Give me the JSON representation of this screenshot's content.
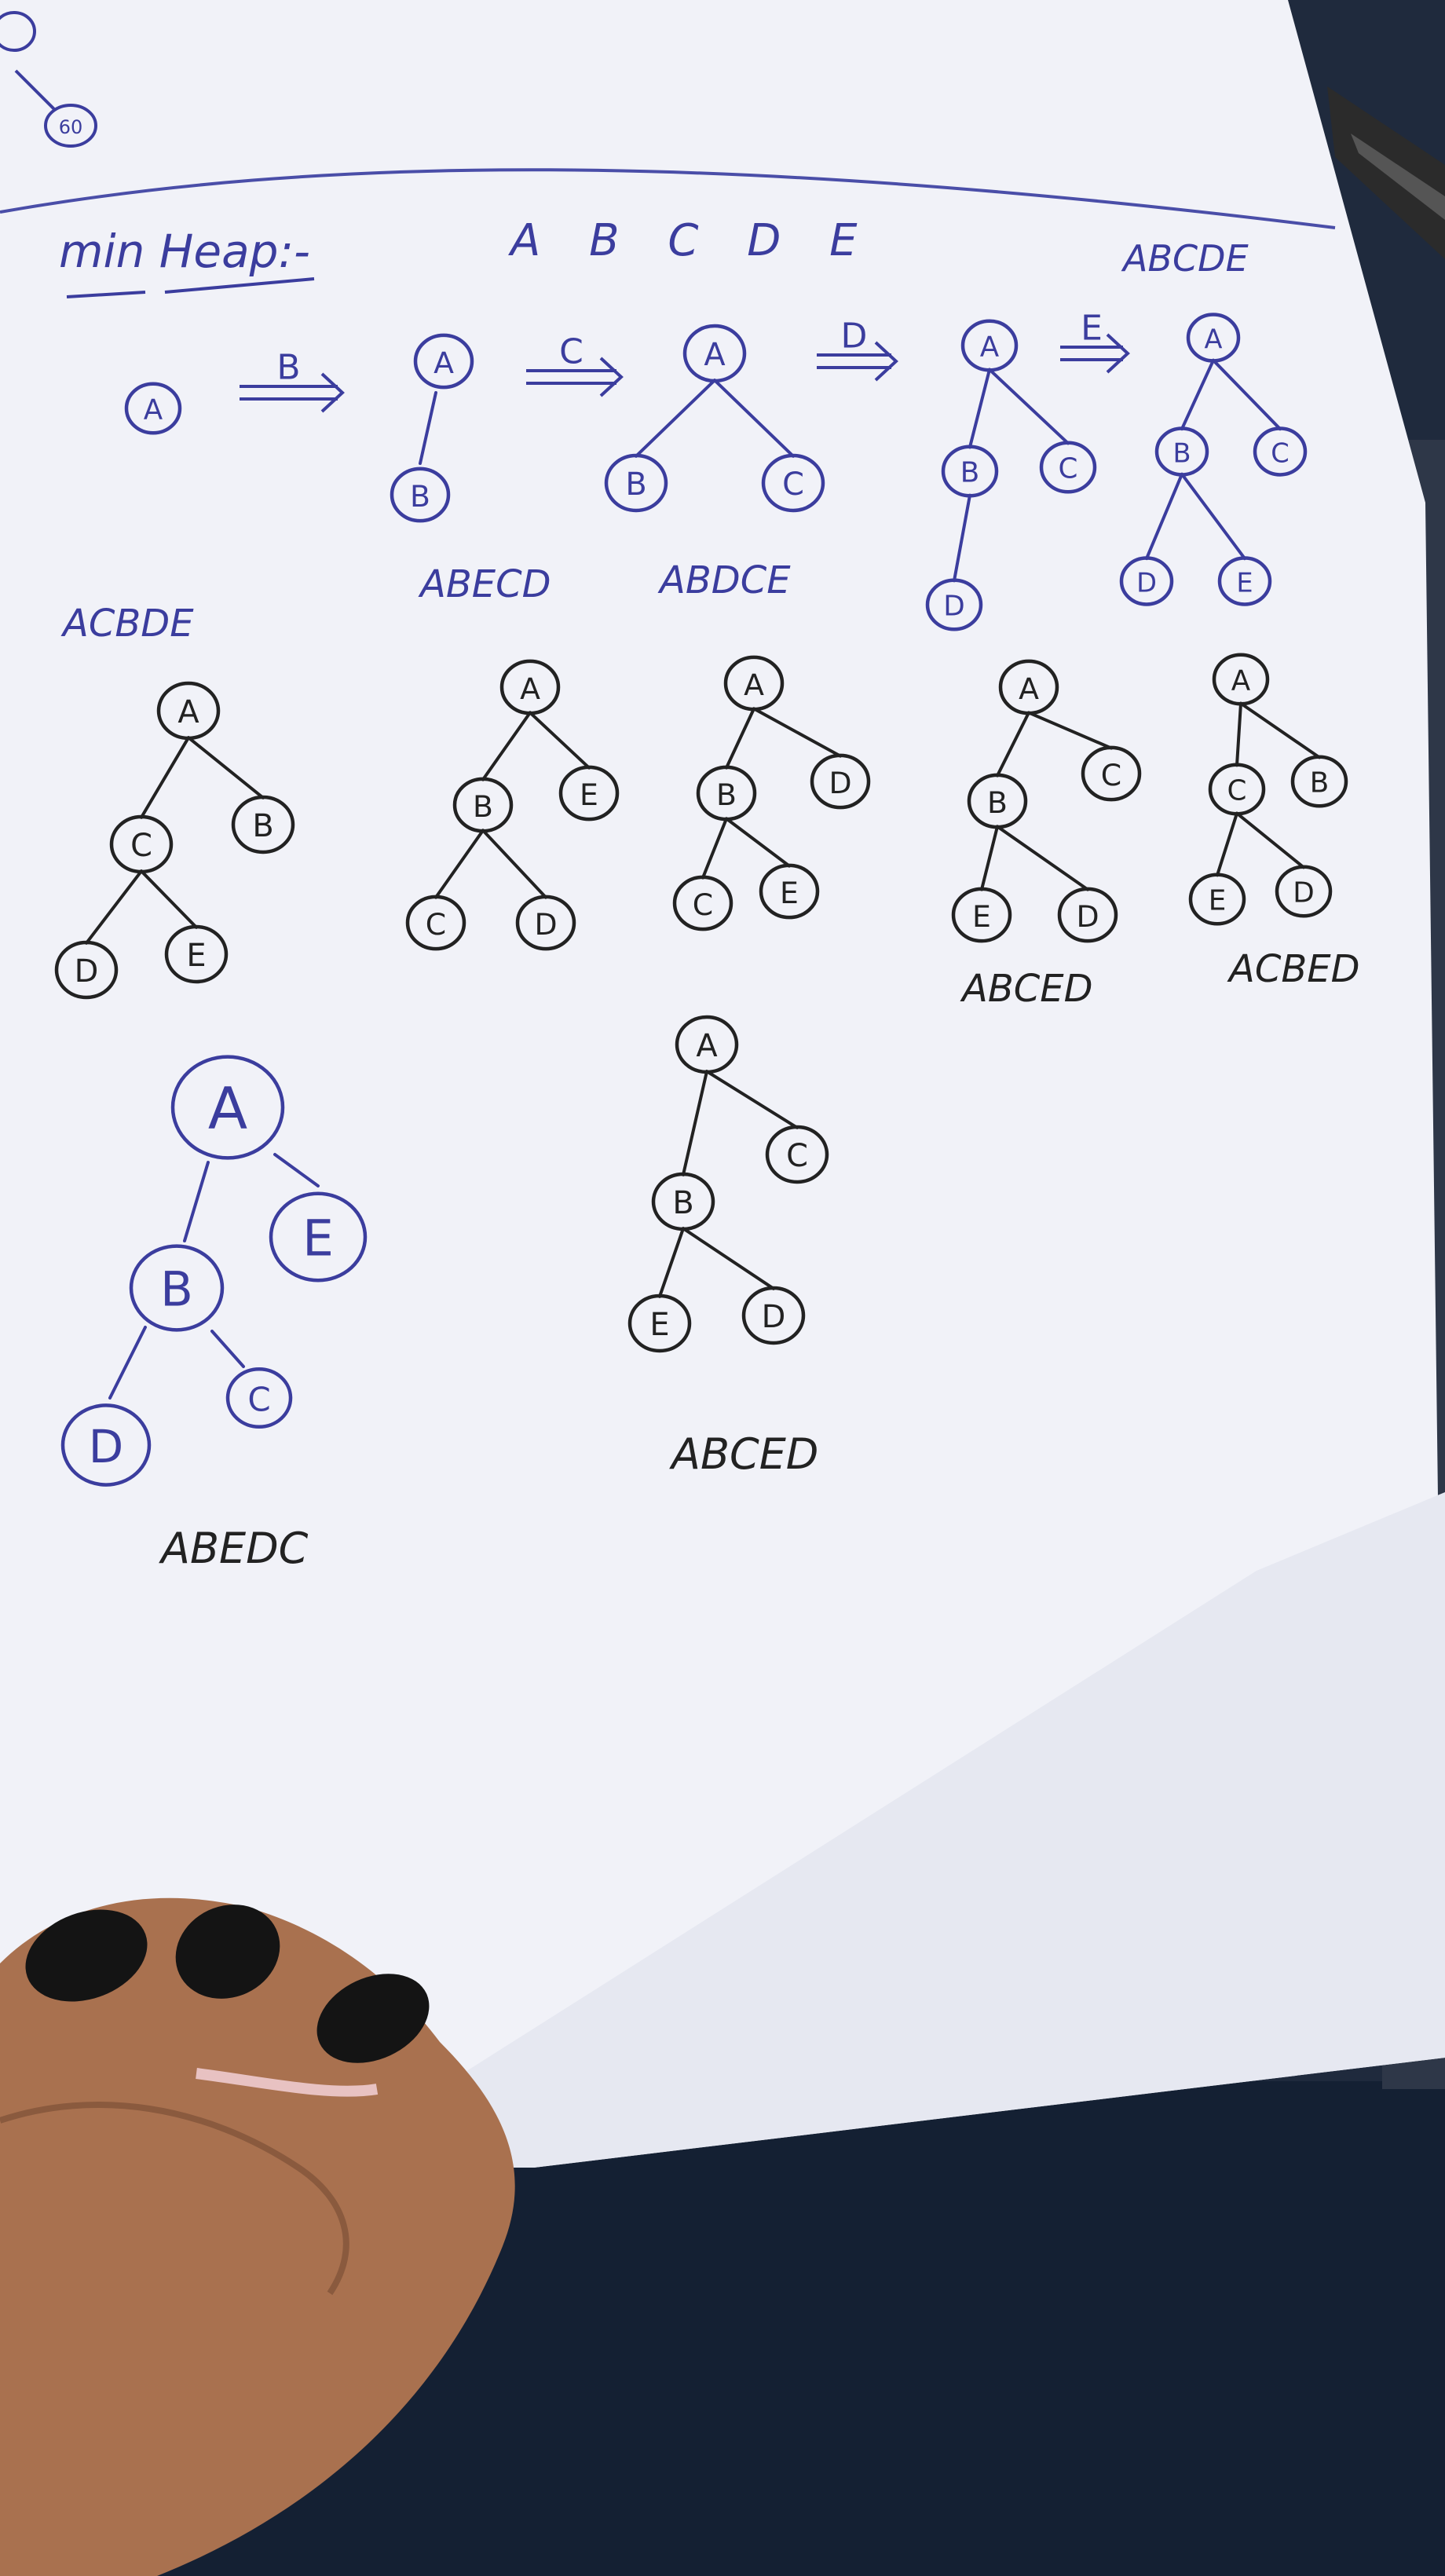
{
  "page": {
    "header": {
      "title": "min Heap:-",
      "sequence": "A B C D E",
      "corner_result": "ABCDE"
    },
    "arrows": [
      {
        "label": "B"
      },
      {
        "label": "C"
      },
      {
        "label": "D"
      },
      {
        "label": "E"
      }
    ],
    "row1": [
      {
        "nodes": [
          "A"
        ]
      },
      {
        "nodes": [
          "A",
          "B"
        ]
      },
      {
        "nodes": [
          "A",
          "B",
          "C"
        ]
      },
      {
        "nodes": [
          "A",
          "B",
          "C",
          "D"
        ]
      },
      {
        "nodes": [
          "A",
          "B",
          "C",
          "D",
          "E"
        ]
      }
    ],
    "row2_labels": [
      "ACBDE",
      "ABECD",
      "ABDCE"
    ],
    "row2": [
      {
        "nodes": [
          "A",
          "C",
          "B",
          "D",
          "E"
        ]
      },
      {
        "nodes": [
          "A",
          "B",
          "E",
          "C",
          "D"
        ]
      },
      {
        "nodes": [
          "A",
          "B",
          "D",
          "C",
          "E"
        ]
      },
      {
        "nodes": [
          "A",
          "B",
          "C",
          "E",
          "D"
        ]
      },
      {
        "nodes": [
          "A",
          "C",
          "B",
          "E",
          "D"
        ]
      }
    ],
    "row2_bottom_labels": [
      "ABCED",
      "ACBED"
    ],
    "row3": [
      {
        "nodes": [
          "A",
          "B",
          "E",
          "D",
          "C"
        ],
        "label": "ABEDC"
      },
      {
        "nodes": [
          "A",
          "B",
          "C",
          "E",
          "D"
        ],
        "label": "ABCED"
      }
    ],
    "top_fragment": {
      "nodes": [
        "60"
      ]
    }
  },
  "colors": {
    "ink_blue": "#3b3d9e",
    "ink_black": "#222222",
    "paper": "#f1f2f8",
    "paper_shadow": "#d9dbe6",
    "margin_line": "#4a4ea8",
    "jeans": "#1f2a3d",
    "skin": "#b07a5a",
    "nail": "#141414"
  }
}
